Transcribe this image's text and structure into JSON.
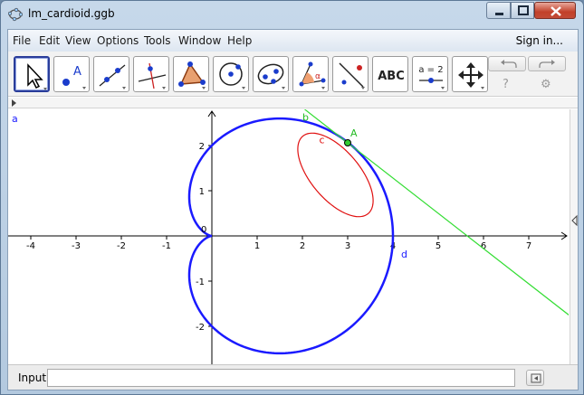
{
  "window": {
    "title": "lm_cardioid.ggb"
  },
  "menu": {
    "items": [
      "File",
      "Edit",
      "View",
      "Options",
      "Tools",
      "Window",
      "Help"
    ],
    "signin": "Sign in..."
  },
  "toolbar": {
    "tools": [
      {
        "name": "move-tool-button",
        "icon": "arrow-pointer-icon"
      },
      {
        "name": "new-point-tool-button",
        "icon": "point-icon"
      },
      {
        "name": "line-tool-button",
        "icon": "line-icon"
      },
      {
        "name": "perpendicular-line-tool-button",
        "icon": "perpendicular-icon"
      },
      {
        "name": "polygon-tool-button",
        "icon": "polygon-icon"
      },
      {
        "name": "circle-tool-button",
        "icon": "circle-icon"
      },
      {
        "name": "ellipse-tool-button",
        "icon": "ellipse-icon"
      },
      {
        "name": "angle-tool-button",
        "icon": "angle-icon"
      },
      {
        "name": "reflect-tool-button",
        "icon": "reflect-icon"
      },
      {
        "name": "text-tool-button",
        "icon": "text-icon",
        "label": "ABC"
      },
      {
        "name": "slider-tool-button",
        "icon": "slider-icon",
        "label": "a = 2"
      },
      {
        "name": "move-graphics-tool-button",
        "icon": "move-graphics-icon"
      }
    ],
    "angle_symbol": "α",
    "help_icon": "?",
    "settings_icon": "⚙"
  },
  "graphics": {
    "label_a": "a",
    "x_ticks": [
      "-4",
      "-3",
      "-2",
      "-1",
      "1",
      "2",
      "3",
      "4",
      "5",
      "6",
      "7"
    ],
    "y_ticks": [
      "2",
      "1",
      "-1",
      "-2"
    ],
    "origin_label": "0",
    "objects": {
      "point_label": "A",
      "tangent_label": "b",
      "ellipse_label": "c",
      "cardioid_label": "d"
    },
    "colors": {
      "cardioid": "#1a1aff",
      "ellipse": "#e01010",
      "tangent": "#33dd33",
      "point": "#33cc33",
      "axes": "#000000"
    }
  },
  "input": {
    "label": "Input:",
    "value": "",
    "placeholder": ""
  }
}
